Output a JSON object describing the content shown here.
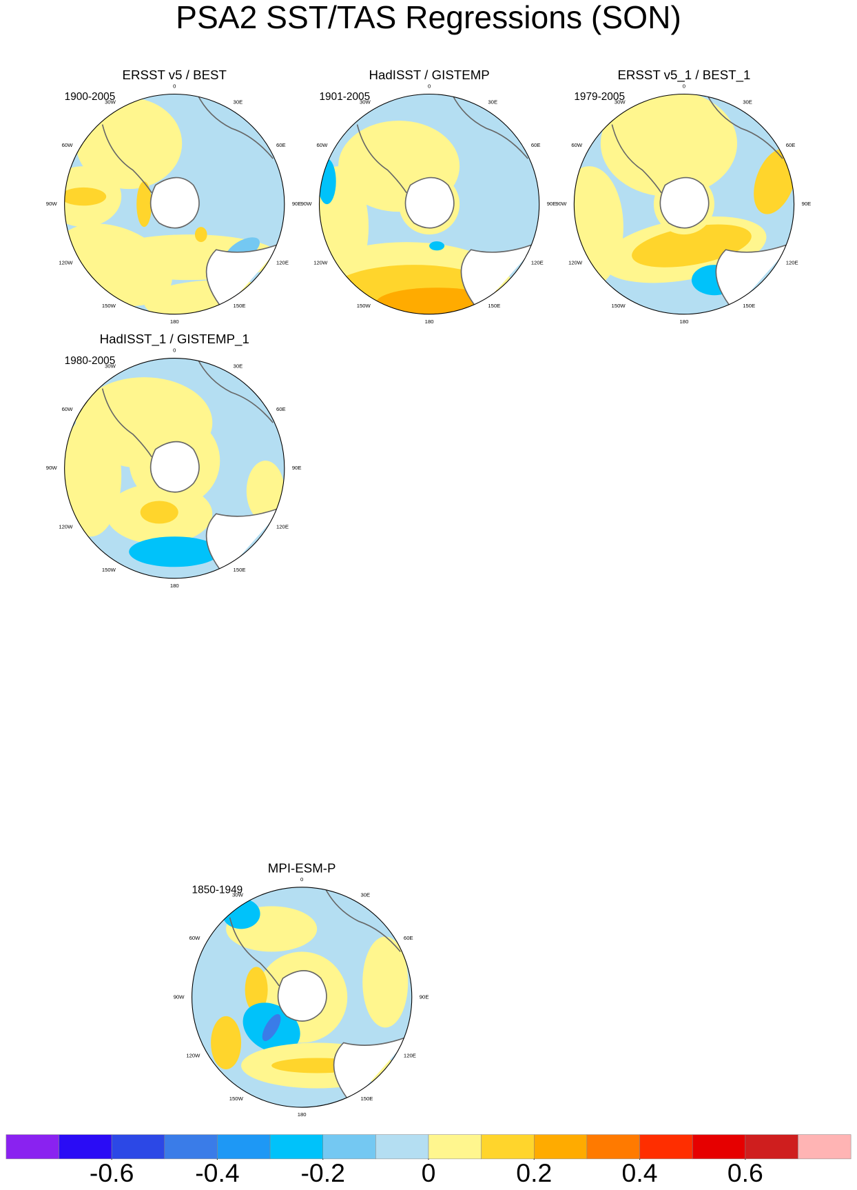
{
  "chart_data": {
    "type": "polar-map-panels",
    "title": "PSA2 SST/TAS Regressions (SON)",
    "lon_labels": [
      "0",
      "30E",
      "60E",
      "90E",
      "120E",
      "150E",
      "180",
      "150W",
      "120W",
      "90W",
      "60W",
      "30W"
    ],
    "panels": [
      {
        "title": "ERSST v5 / BEST",
        "period": "1900-2005"
      },
      {
        "title": "HadISST / GISTEMP",
        "period": "1901-2005"
      },
      {
        "title": "ERSST v5_1 / BEST_1",
        "period": "1979-2005"
      },
      {
        "title": "HadISST_1 / GISTEMP_1",
        "period": "1980-2005"
      },
      {
        "title": "MPI-ESM-P",
        "period": "1850-1949"
      }
    ],
    "colorbar": {
      "levels": [
        -0.7,
        -0.6,
        -0.5,
        -0.4,
        -0.3,
        -0.2,
        -0.1,
        0,
        0.1,
        0.2,
        0.3,
        0.4,
        0.5,
        0.6,
        0.7
      ],
      "colors": [
        "#8a22f0",
        "#2a0cf5",
        "#2c48e6",
        "#3a7ce8",
        "#1e98f5",
        "#00c2fa",
        "#74c8f2",
        "#b4def2",
        "#fff68e",
        "#ffd52c",
        "#ffab00",
        "#ff7a00",
        "#ff2e00",
        "#e60000",
        "#cf1e1e",
        "#ffb4b4"
      ],
      "ticks": [
        -0.6,
        -0.4,
        -0.2,
        0,
        0.2,
        0.4,
        0.6
      ]
    }
  }
}
